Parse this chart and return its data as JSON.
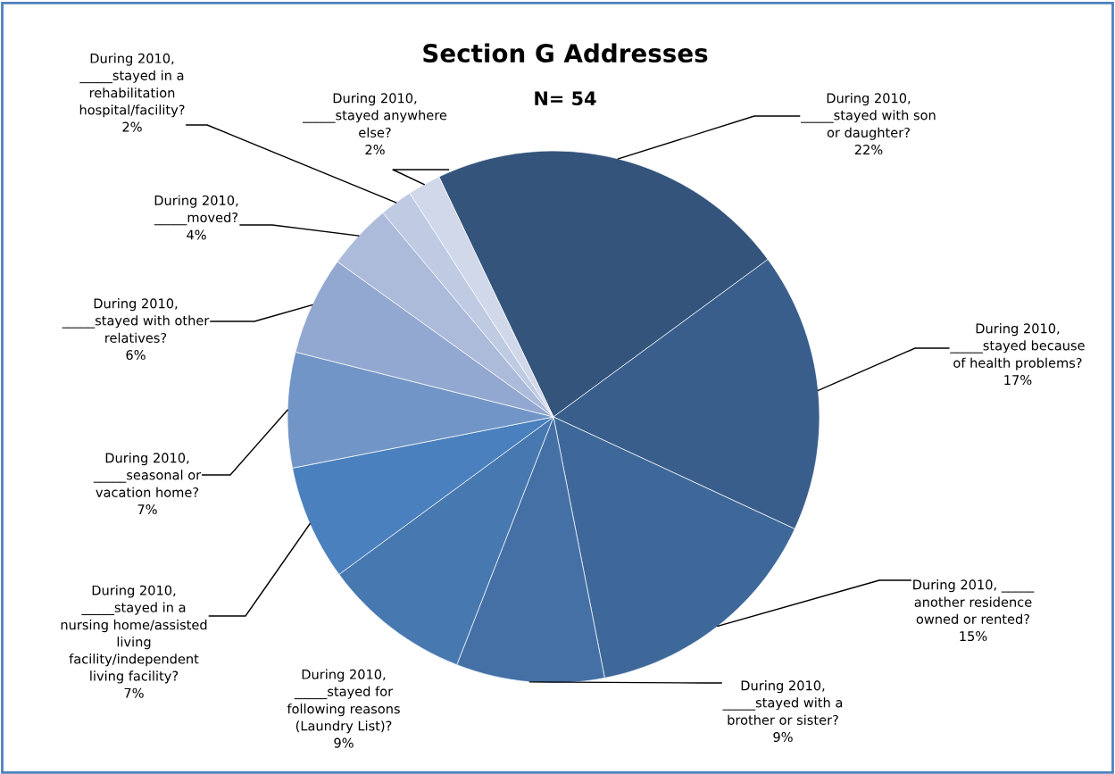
{
  "chart_data": {
    "type": "pie",
    "title": "Section G Addresses",
    "subtitle": "N= 54",
    "categories": [
      "During 2010,\n_____stayed with son\nor daughter?",
      "During 2010,\n_____stayed because\nof health problems?",
      "During 2010, _____\nanother residence\nowned or rented?",
      "During 2010,\n_____stayed with a\nbrother or sister?",
      "During 2010,\n_____stayed for\nfollowing reasons\n(Laundry List)?",
      "During 2010,\n_____stayed in a\nnursing home/assisted\nliving\nfacility/independent\nliving facility?",
      "During 2010,\n_____seasonal or\nvacation home?",
      "During 2010,\n_____stayed with other\nrelatives?",
      "During 2010,\n_____moved?",
      "During 2010,\n_____stayed in a\nrehabilitation\nhospital/facility?",
      "During 2010,\n_____stayed anywhere\nelse?"
    ],
    "values": [
      22,
      17,
      15,
      9,
      9,
      7,
      7,
      6,
      4,
      2,
      2
    ],
    "value_labels": [
      "22%",
      "17%",
      "15%",
      "9%",
      "9%",
      "7%",
      "7%",
      "6%",
      "4%",
      "2%",
      "2%"
    ],
    "colors": [
      "#34547c",
      "#3a5e8c",
      "#3e6899",
      "#4470a6",
      "#4778b0",
      "#4a80bd",
      "#7195c6",
      "#93a8d0",
      "#adbbdb",
      "#bfcae3",
      "#d0d8ea"
    ]
  }
}
